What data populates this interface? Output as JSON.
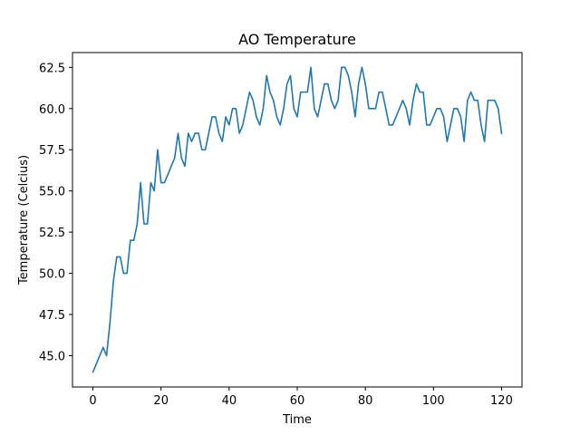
{
  "chart_data": {
    "type": "line",
    "title": "AO Temperature",
    "xlabel": "Time",
    "ylabel": "Temperature (Celcius)",
    "xlim": [
      -6,
      126
    ],
    "ylim": [
      43.1,
      63.4
    ],
    "xticks": [
      0,
      20,
      40,
      60,
      80,
      100,
      120
    ],
    "xtick_labels": [
      "0",
      "20",
      "40",
      "60",
      "80",
      "100",
      "120"
    ],
    "yticks": [
      45.0,
      47.5,
      50.0,
      52.5,
      55.0,
      57.5,
      60.0,
      62.5
    ],
    "ytick_labels": [
      "45.0",
      "47.5",
      "50.0",
      "52.5",
      "55.0",
      "57.5",
      "60.0",
      "62.5"
    ],
    "grid": false,
    "series": [
      {
        "color": "#1f77b4",
        "x": [
          0,
          1,
          2,
          3,
          4,
          5,
          6,
          7,
          8,
          9,
          10,
          11,
          12,
          13,
          14,
          15,
          16,
          17,
          18,
          19,
          20,
          21,
          22,
          23,
          24,
          25,
          26,
          27,
          28,
          29,
          30,
          31,
          32,
          33,
          34,
          35,
          36,
          37,
          38,
          39,
          40,
          41,
          42,
          43,
          44,
          45,
          46,
          47,
          48,
          49,
          50,
          51,
          52,
          53,
          54,
          55,
          56,
          57,
          58,
          59,
          60,
          61,
          62,
          63,
          64,
          65,
          66,
          67,
          68,
          69,
          70,
          71,
          72,
          73,
          74,
          75,
          76,
          77,
          78,
          79,
          80,
          81,
          82,
          83,
          84,
          85,
          86,
          87,
          88,
          89,
          90,
          91,
          92,
          93,
          94,
          95,
          96,
          97,
          98,
          99,
          100,
          101,
          102,
          103,
          104,
          105,
          106,
          107,
          108,
          109,
          110,
          111,
          112,
          113,
          114,
          115,
          116,
          117,
          118,
          119,
          120
        ],
        "y": [
          44.0,
          44.5,
          45.0,
          45.5,
          45.0,
          47.0,
          49.5,
          51.0,
          51.0,
          50.0,
          50.0,
          52.0,
          52.0,
          53.0,
          55.5,
          53.0,
          53.0,
          55.5,
          55.0,
          57.5,
          55.5,
          55.5,
          56.0,
          56.5,
          57.0,
          58.5,
          57.0,
          56.5,
          58.5,
          58.0,
          58.5,
          58.5,
          57.5,
          57.5,
          58.5,
          59.5,
          59.5,
          58.5,
          58.0,
          59.5,
          59.0,
          60.0,
          60.0,
          58.5,
          59.0,
          60.0,
          61.0,
          60.5,
          59.5,
          59.0,
          60.0,
          62.0,
          61.0,
          60.5,
          59.5,
          59.0,
          60.0,
          61.5,
          62.0,
          60.0,
          59.5,
          61.0,
          61.0,
          61.0,
          62.5,
          60.0,
          59.5,
          60.5,
          61.5,
          61.5,
          60.5,
          60.0,
          60.5,
          62.5,
          62.5,
          62.0,
          61.0,
          59.5,
          61.5,
          62.5,
          61.5,
          60.0,
          60.0,
          60.0,
          61.0,
          61.0,
          60.0,
          59.0,
          59.0,
          59.5,
          60.0,
          60.5,
          60.0,
          59.0,
          60.5,
          61.5,
          61.0,
          61.0,
          59.0,
          59.0,
          59.5,
          60.0,
          60.0,
          59.5,
          58.0,
          59.0,
          60.0,
          60.0,
          59.5,
          58.0,
          60.5,
          61.0,
          60.5,
          60.5,
          59.0,
          58.0,
          60.5,
          60.5,
          60.5,
          60.0,
          58.5
        ]
      }
    ]
  }
}
